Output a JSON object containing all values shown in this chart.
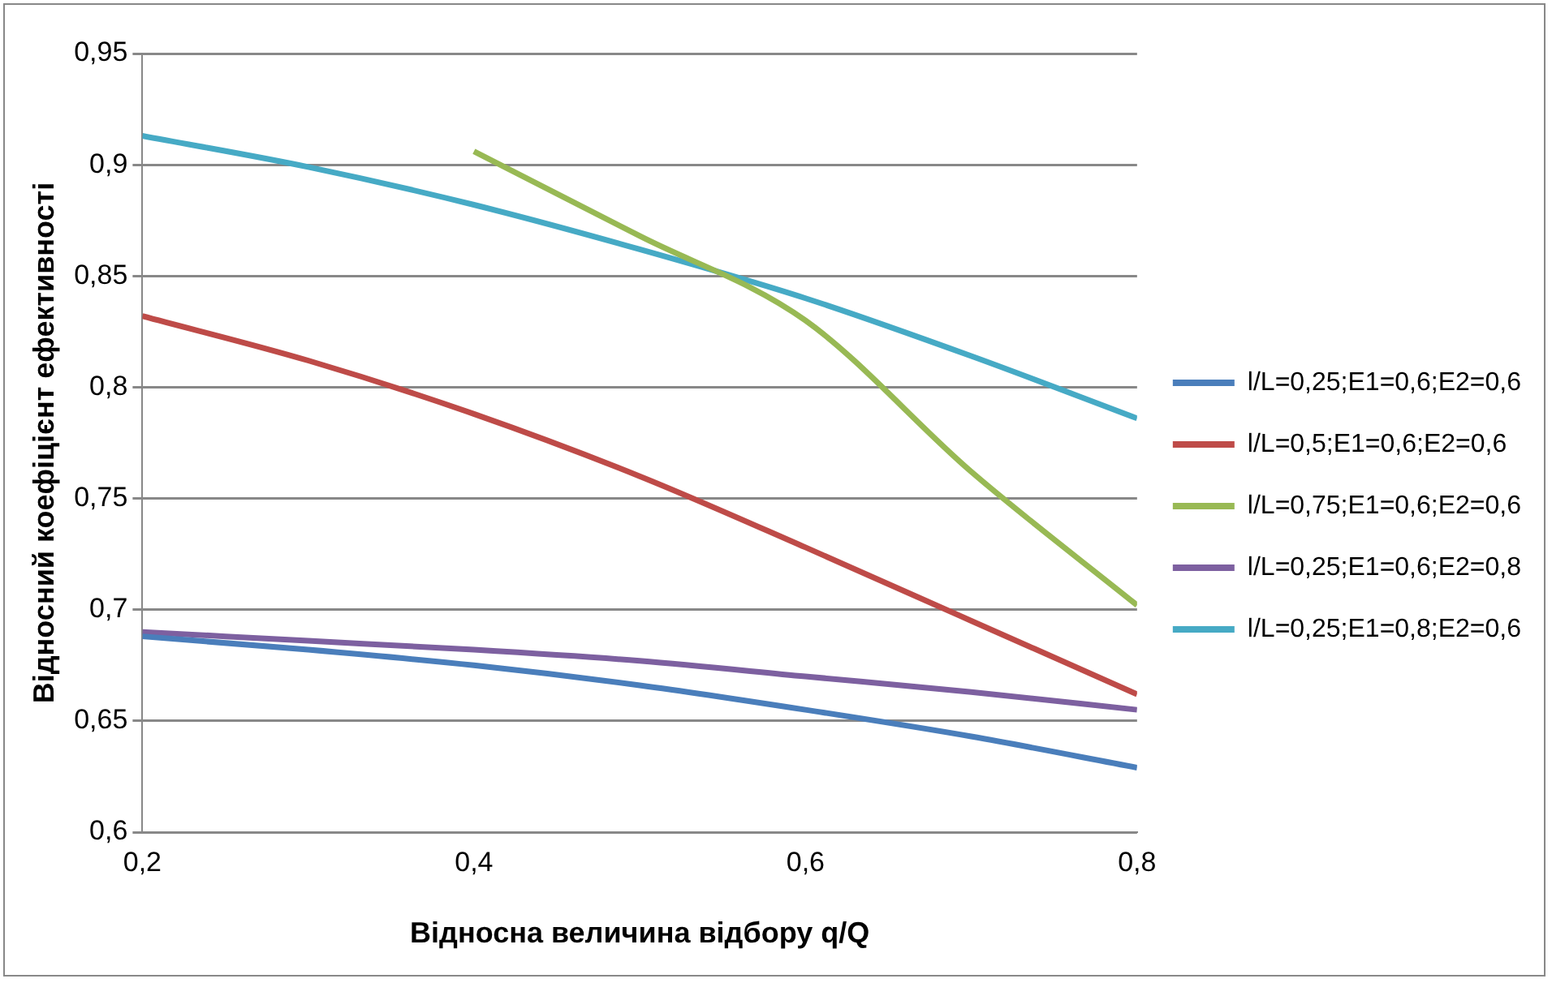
{
  "chart_data": {
    "type": "line",
    "xlabel": "Відносна величина відбору q/Q",
    "ylabel": "Відносний коефіцієнт ефективності",
    "x": [
      0.2,
      0.3,
      0.4,
      0.5,
      0.6,
      0.7,
      0.8
    ],
    "xlim": [
      0.2,
      0.8
    ],
    "xticks": [
      {
        "value": 0.2,
        "label": "0,2"
      },
      {
        "value": 0.4,
        "label": "0,4"
      },
      {
        "value": 0.6,
        "label": "0,6"
      },
      {
        "value": 0.8,
        "label": "0,8"
      }
    ],
    "ylim": [
      0.6,
      0.95
    ],
    "yticks": [
      {
        "value": 0.6,
        "label": "0,6"
      },
      {
        "value": 0.65,
        "label": "0,65"
      },
      {
        "value": 0.7,
        "label": "0,7"
      },
      {
        "value": 0.75,
        "label": "0,75"
      },
      {
        "value": 0.8,
        "label": "0,8"
      },
      {
        "value": 0.85,
        "label": "0,85"
      },
      {
        "value": 0.9,
        "label": "0,9"
      },
      {
        "value": 0.95,
        "label": "0,95"
      }
    ],
    "grid": "y",
    "legend": "right",
    "marker": "none",
    "line_style": "solid",
    "series": [
      {
        "name": "l/L=0,25;E1=0,6;E2=0,6",
        "color": "#4a7ebb",
        "values": [
          0.688,
          0.682,
          0.675,
          0.666,
          0.655,
          0.643,
          0.629
        ]
      },
      {
        "name": "l/L=0,5;E1=0,6;E2=0,6",
        "color": "#be4b48",
        "values": [
          0.832,
          0.812,
          0.788,
          0.76,
          0.728,
          0.695,
          0.662
        ]
      },
      {
        "name": "l/L=0,75;E1=0,6;E2=0,6",
        "color": "#98b954",
        "values": [
          null,
          null,
          0.906,
          0.868,
          0.83,
          0.762,
          0.702
        ]
      },
      {
        "name": "l/L=0,25;E1=0,6;E2=0,8",
        "color": "#7d60a0",
        "values": [
          0.69,
          0.686,
          0.682,
          0.677,
          0.67,
          0.663,
          0.655
        ]
      },
      {
        "name": "l/L=0,25;E1=0,8;E2=0,6",
        "color": "#46aac5",
        "values": [
          0.913,
          0.899,
          0.882,
          0.862,
          0.84,
          0.814,
          0.786
        ]
      }
    ]
  }
}
